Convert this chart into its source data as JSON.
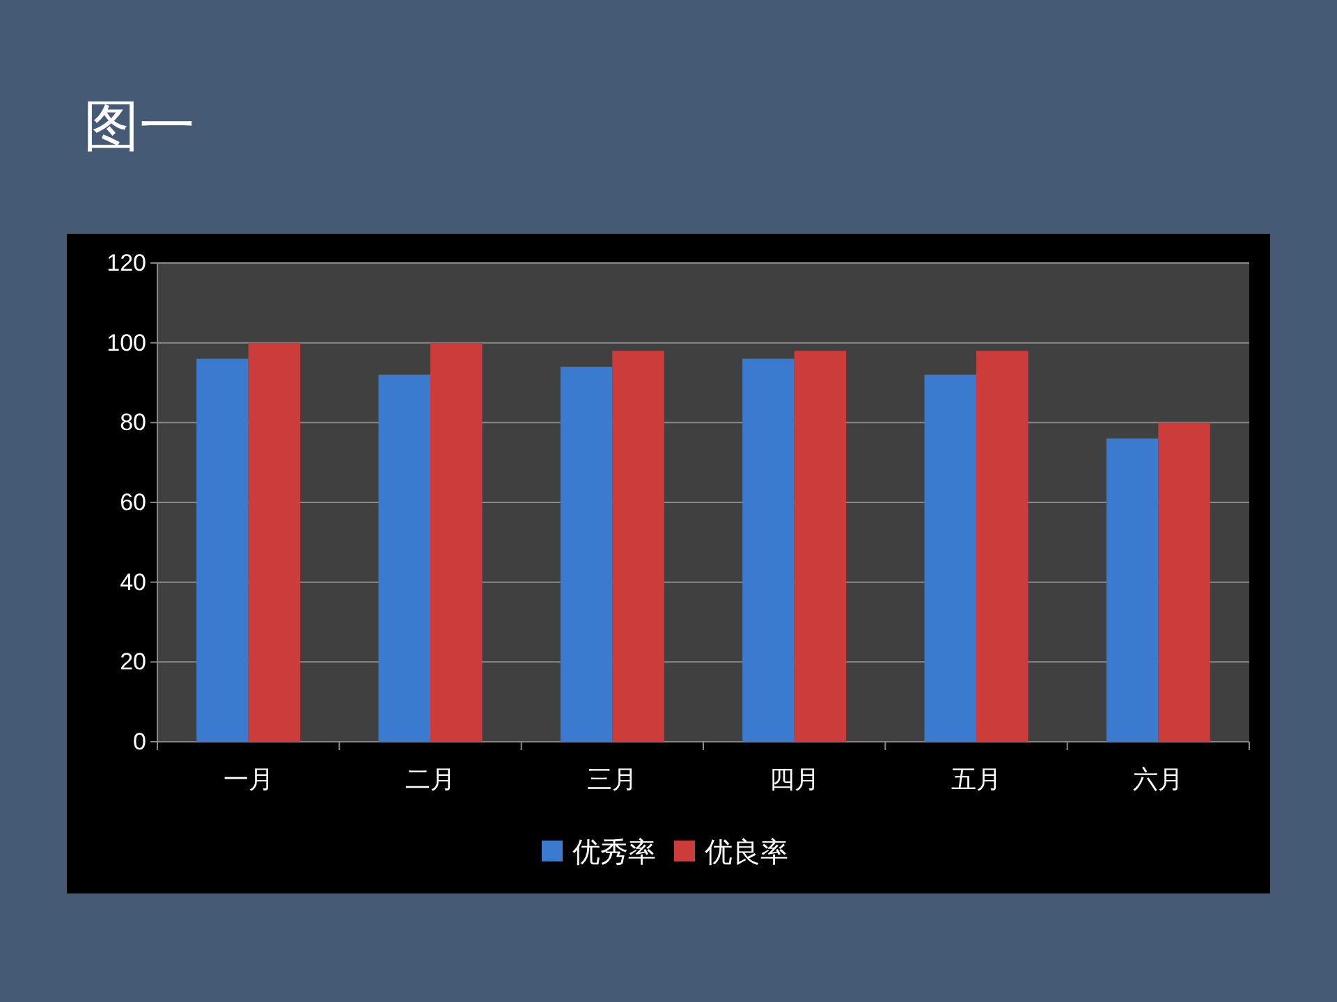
{
  "chart_data": {
    "type": "bar",
    "title": "图一",
    "categories": [
      "一月",
      "二月",
      "三月",
      "四月",
      "五月",
      "六月"
    ],
    "series": [
      {
        "name": "优秀率",
        "color": "#3a7bd0",
        "values": [
          96,
          92,
          94,
          96,
          92,
          76
        ]
      },
      {
        "name": "优良率",
        "color": "#cc3c3a",
        "values": [
          100,
          100,
          98,
          98,
          98,
          80
        ]
      }
    ],
    "ylim": [
      0,
      120
    ],
    "yticks": [
      0,
      20,
      40,
      60,
      80,
      100,
      120
    ],
    "grid": "y",
    "legend": "bottom"
  }
}
